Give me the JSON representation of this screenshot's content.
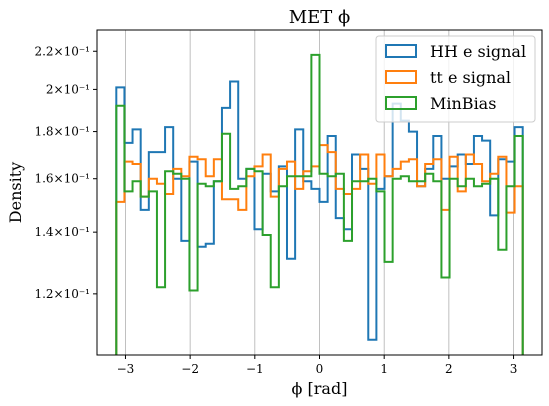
{
  "chart_data": {
    "type": "histogram-step",
    "title": "MET ϕ",
    "xlabel": "ϕ [rad]",
    "ylabel": "Density",
    "yscale": "log",
    "xlim": [
      -3.44,
      3.44
    ],
    "ylim": [
      0.103,
      0.232
    ],
    "x_ticks": [
      -3,
      -2,
      -1,
      0,
      1,
      2,
      3
    ],
    "x_tick_labels": [
      "−3",
      "−2",
      "−1",
      "0",
      "1",
      "2",
      "3"
    ],
    "y_ticks": [
      0.12,
      0.14,
      0.16,
      0.18,
      0.2,
      0.22
    ],
    "y_tick_labels": [
      "1.2×10⁻¹",
      "1.4×10⁻¹",
      "1.6×10⁻¹",
      "1.8×10⁻¹",
      "2×10⁻¹",
      "2.2×10⁻¹"
    ],
    "x_grid": true,
    "legend_position": "top-right",
    "bin_edges": [
      -3.1416,
      -3.0159,
      -2.8903,
      -2.7646,
      -2.6389,
      -2.5133,
      -2.3876,
      -2.2619,
      -2.1363,
      -2.0106,
      -1.885,
      -1.7593,
      -1.6336,
      -1.508,
      -1.3823,
      -1.2566,
      -1.131,
      -1.0053,
      -0.8796,
      -0.754,
      -0.6283,
      -0.5027,
      -0.377,
      -0.2513,
      -0.1257,
      0.0,
      0.1257,
      0.2513,
      0.377,
      0.5027,
      0.6283,
      0.754,
      0.8796,
      1.0053,
      1.131,
      1.2566,
      1.3823,
      1.508,
      1.6336,
      1.7593,
      1.885,
      2.0106,
      2.1363,
      2.2619,
      2.3876,
      2.5133,
      2.6389,
      2.7646,
      2.8903,
      3.0159,
      3.1416
    ],
    "series": [
      {
        "name": "HH e signal",
        "color": "#1f77b4",
        "values": [
          0.201,
          0.175,
          0.181,
          0.148,
          0.171,
          0.171,
          0.182,
          0.16,
          0.137,
          0.167,
          0.135,
          0.136,
          0.159,
          0.191,
          0.204,
          0.16,
          0.164,
          0.141,
          0.162,
          0.155,
          0.165,
          0.131,
          0.181,
          0.159,
          0.156,
          0.151,
          0.178,
          0.145,
          0.141,
          0.17,
          0.164,
          0.107,
          0.156,
          0.161,
          0.193,
          0.185,
          0.18,
          0.157,
          0.164,
          0.178,
          0.16,
          0.165,
          0.17,
          0.166,
          0.178,
          0.176,
          0.146,
          0.168,
          0.167,
          0.182
        ]
      },
      {
        "name": "tt e signal",
        "color": "#ff7f0e",
        "values": [
          0.151,
          0.167,
          0.166,
          0.153,
          0.16,
          0.158,
          0.154,
          0.164,
          0.161,
          0.169,
          0.168,
          0.161,
          0.168,
          0.152,
          0.152,
          0.148,
          0.161,
          0.165,
          0.17,
          0.153,
          0.164,
          0.167,
          0.156,
          0.163,
          0.165,
          0.174,
          0.171,
          0.156,
          0.154,
          0.156,
          0.17,
          0.158,
          0.17,
          0.161,
          0.164,
          0.167,
          0.168,
          0.157,
          0.166,
          0.168,
          0.148,
          0.169,
          0.155,
          0.17,
          0.166,
          0.159,
          0.162,
          0.169,
          0.147,
          0.157
        ]
      },
      {
        "name": "MinBias",
        "color": "#2ca02c",
        "values": [
          0.192,
          0.155,
          0.159,
          0.153,
          0.155,
          0.122,
          0.163,
          0.162,
          0.16,
          0.121,
          0.158,
          0.157,
          0.159,
          0.179,
          0.156,
          0.157,
          0.164,
          0.163,
          0.139,
          0.122,
          0.157,
          0.161,
          0.161,
          0.161,
          0.218,
          0.162,
          0.161,
          0.162,
          0.137,
          0.159,
          0.159,
          0.16,
          0.155,
          0.13,
          0.16,
          0.161,
          0.159,
          0.159,
          0.162,
          0.159,
          0.125,
          0.16,
          0.157,
          0.16,
          0.157,
          0.158,
          0.16,
          0.134,
          0.157,
          0.178
        ]
      }
    ]
  }
}
